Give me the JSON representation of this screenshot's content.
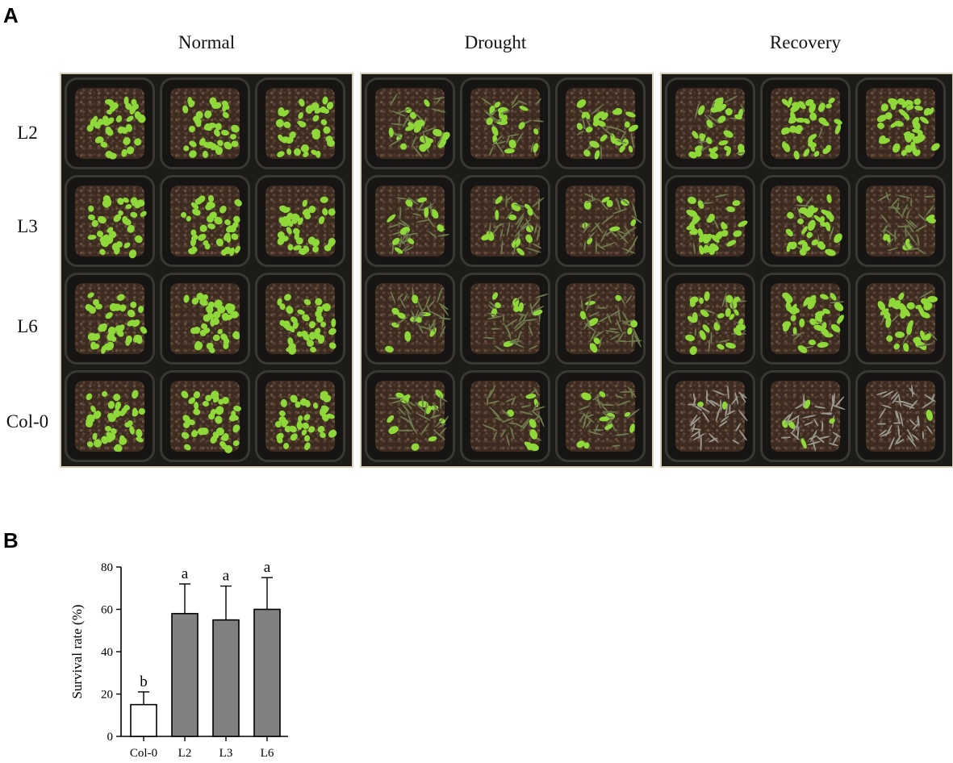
{
  "panels": {
    "a": "A",
    "b": "B"
  },
  "conditions": [
    "Normal",
    "Drought",
    "Recovery"
  ],
  "genotypes": [
    "L2",
    "L3",
    "L6",
    "Col-0"
  ],
  "plant_vigor": {
    "Normal": [
      [
        1,
        1,
        1
      ],
      [
        1,
        1,
        1
      ],
      [
        1,
        1,
        1
      ],
      [
        1,
        1,
        1
      ]
    ],
    "Drought": [
      [
        0.35,
        0.4,
        0.4
      ],
      [
        0.3,
        0.3,
        0.25
      ],
      [
        0.25,
        0.3,
        0.3
      ],
      [
        0.25,
        0.25,
        0.25
      ]
    ],
    "Recovery": [
      [
        0.6,
        0.9,
        0.9
      ],
      [
        0.9,
        0.8,
        0.3
      ],
      [
        0.5,
        0.9,
        0.8
      ],
      [
        0.05,
        0.05,
        0.05
      ]
    ]
  },
  "colors": {
    "leaf_healthy": "#8ed83a",
    "leaf_dry": "#6f7a4e",
    "leaf_dead": "#9a9a90",
    "bar_control": "#ffffff",
    "bar_transgenic": "#808080"
  },
  "chart_data": {
    "type": "bar",
    "categories": [
      "Col-0",
      "L2",
      "L3",
      "L6"
    ],
    "values": [
      15,
      58,
      55,
      60
    ],
    "errors": [
      6,
      14,
      16,
      15
    ],
    "significance": [
      "b",
      "a",
      "a",
      "a"
    ],
    "ylabel": "Survival rate (%)",
    "ylim": [
      0,
      80
    ],
    "yticks": [
      0,
      20,
      40,
      60,
      80
    ]
  }
}
